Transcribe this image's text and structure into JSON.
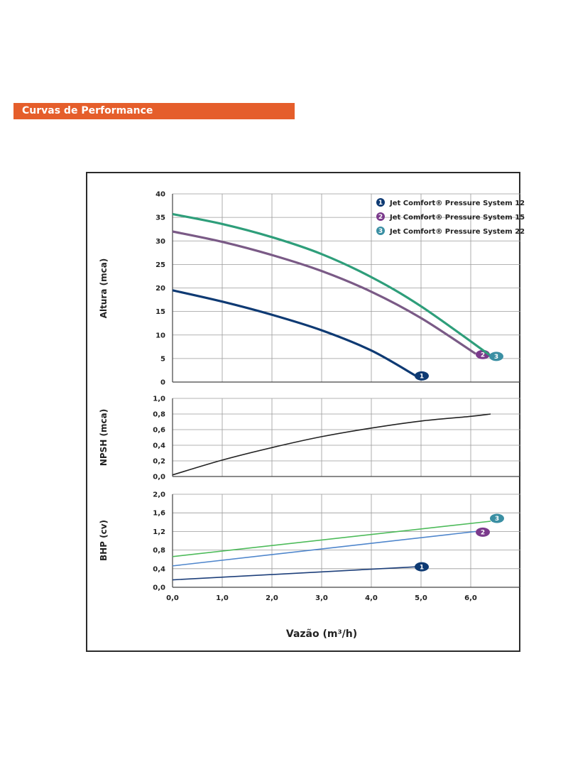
{
  "header": {
    "title": "Curvas de Performance"
  },
  "colors": {
    "banner": "#e55e2b",
    "series_1": "#0e3a73",
    "series_2": "#7b3a8c",
    "series_3": "#3a8fa3",
    "altura_3_line": "#2e9e7a",
    "altura_2_line": "#7a5a86",
    "npsh_line": "#222222",
    "bhp_3_line": "#4dbb5a",
    "bhp_2_line": "#4f86cc",
    "bhp_1_line": "#1d3f7a"
  },
  "chart_data": [
    {
      "type": "line",
      "panel": "altura",
      "ylabel": "Altura (mca)",
      "xlim": [
        0,
        7
      ],
      "ylim": [
        0,
        40
      ],
      "x_ticks": [
        0,
        1,
        2,
        3,
        4,
        5,
        6
      ],
      "y_ticks": [
        0,
        5,
        10,
        15,
        20,
        25,
        30,
        35,
        40
      ],
      "y_tick_labels": [
        "0",
        "5",
        "10",
        "15",
        "20",
        "25",
        "30",
        "35",
        "40"
      ],
      "grid": true,
      "legend": {
        "placement": "top-right",
        "entries": [
          {
            "marker": "1",
            "label": "Jet Comfort® Pressure System 12"
          },
          {
            "marker": "2",
            "label": "Jet Comfort® Pressure System 15"
          },
          {
            "marker": "3",
            "label": "Jet Comfort® Pressure System 22"
          }
        ]
      },
      "series": [
        {
          "name": "Jet Comfort® Pressure System 12",
          "marker": "1",
          "points": [
            [
              0,
              19.5
            ],
            [
              1,
              17.1
            ],
            [
              2,
              14.3
            ],
            [
              3,
              11.0
            ],
            [
              4,
              6.7
            ],
            [
              4.9,
              1.3
            ]
          ]
        },
        {
          "name": "Jet Comfort® Pressure System 15",
          "marker": "2",
          "points": [
            [
              0,
              32.0
            ],
            [
              1,
              29.8
            ],
            [
              2,
              27.0
            ],
            [
              3,
              23.6
            ],
            [
              4,
              19.2
            ],
            [
              5,
              13.6
            ],
            [
              6.1,
              6.0
            ]
          ]
        },
        {
          "name": "Jet Comfort® Pressure System 22",
          "marker": "3",
          "points": [
            [
              0,
              35.7
            ],
            [
              1,
              33.6
            ],
            [
              2,
              30.8
            ],
            [
              3,
              27.2
            ],
            [
              4,
              22.3
            ],
            [
              5,
              16.1
            ],
            [
              6.4,
              5.6
            ]
          ]
        }
      ]
    },
    {
      "type": "line",
      "panel": "npsh",
      "ylabel": "NPSH (mca)",
      "xlim": [
        0,
        7
      ],
      "ylim": [
        0,
        1
      ],
      "x_ticks": [
        0,
        1,
        2,
        3,
        4,
        5,
        6
      ],
      "y_ticks": [
        0,
        0.2,
        0.4,
        0.6,
        0.8,
        1.0
      ],
      "y_tick_labels": [
        "0,0",
        "0,2",
        "0,4",
        "0,6",
        "0,8",
        "1,0"
      ],
      "grid": true,
      "series": [
        {
          "points": [
            [
              0,
              0.02
            ],
            [
              1,
              0.21
            ],
            [
              2,
              0.37
            ],
            [
              3,
              0.51
            ],
            [
              4,
              0.62
            ],
            [
              5,
              0.71
            ],
            [
              6,
              0.77
            ],
            [
              6.4,
              0.8
            ]
          ]
        }
      ]
    },
    {
      "type": "line",
      "panel": "bhp",
      "ylabel": "BHP (cv)",
      "xlabel": "Vazão (m³/h)",
      "xlim": [
        0,
        7
      ],
      "ylim": [
        0,
        2
      ],
      "x_ticks": [
        0,
        1,
        2,
        3,
        4,
        5,
        6
      ],
      "x_tick_labels": [
        "0,0",
        "1,0",
        "2,0",
        "3,0",
        "4,0",
        "5,0",
        "6,0"
      ],
      "y_ticks": [
        0,
        0.4,
        0.8,
        1.2,
        1.6,
        2.0
      ],
      "y_tick_labels": [
        "0,0",
        "0,4",
        "0,8",
        "1,2",
        "1,6",
        "2,0"
      ],
      "grid": true,
      "series": [
        {
          "name": "Jet Comfort® Pressure System 12",
          "marker": "1",
          "points": [
            [
              0,
              0.16
            ],
            [
              4.9,
              0.44
            ]
          ]
        },
        {
          "name": "Jet Comfort® Pressure System 15",
          "marker": "2",
          "points": [
            [
              0,
              0.46
            ],
            [
              6.1,
              1.2
            ]
          ]
        },
        {
          "name": "Jet Comfort® Pressure System 22",
          "marker": "3",
          "points": [
            [
              0,
              0.66
            ],
            [
              6.4,
              1.42
            ]
          ]
        }
      ]
    }
  ]
}
